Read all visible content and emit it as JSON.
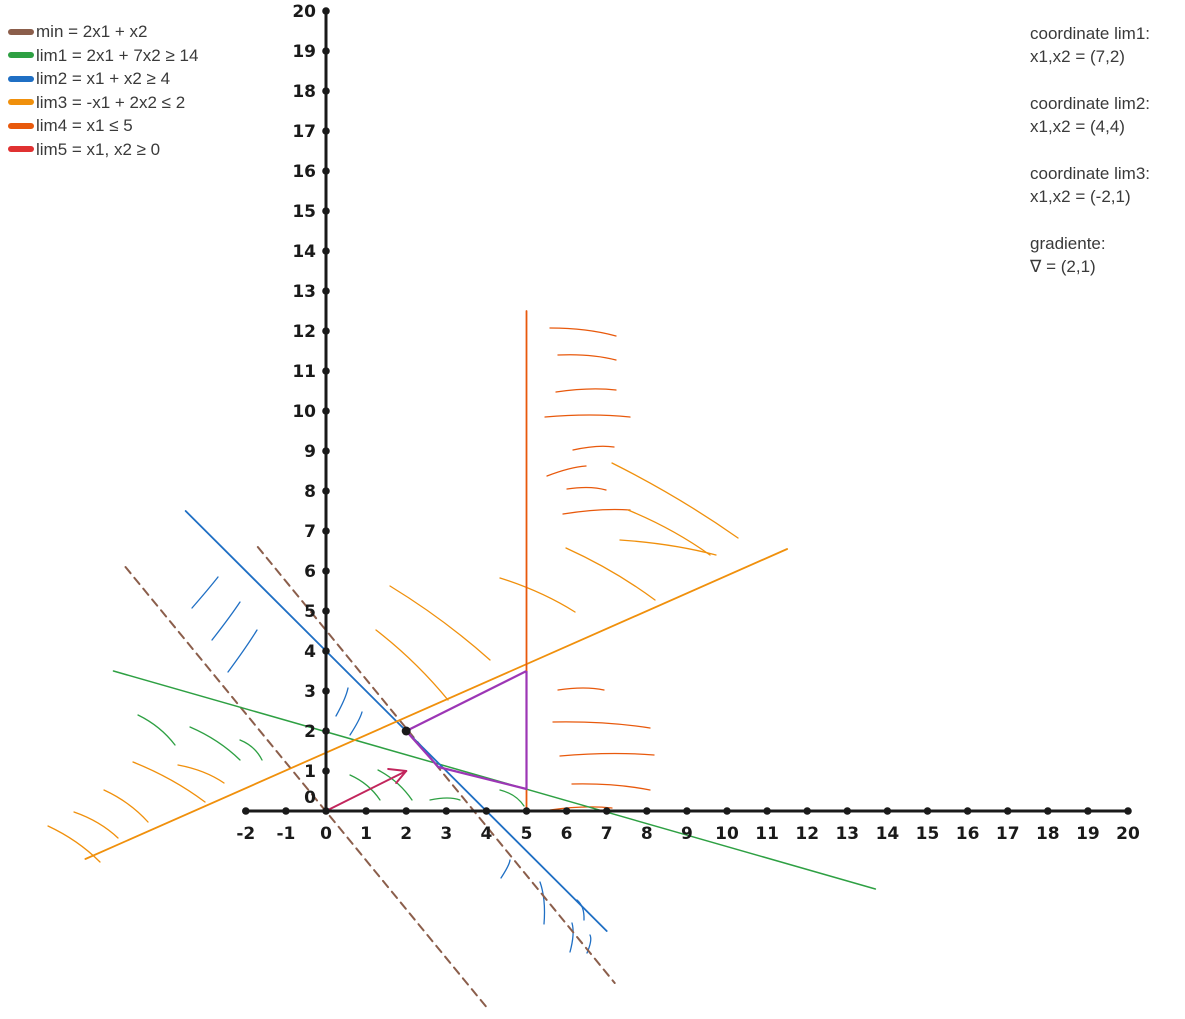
{
  "legend": [
    {
      "label": "min = 2x1 + x2",
      "color": "#8b5e4b"
    },
    {
      "label": "lim1 = 2x1 + 7x2 ≥ 14",
      "color": "#2ea043"
    },
    {
      "label": "lim2 = x1 + x2 ≥ 4",
      "color": "#1f6fc4"
    },
    {
      "label": "lim3 = -x1 + 2x2 ≤ 2",
      "color": "#f0900c"
    },
    {
      "label": "lim4 = x1 ≤ 5",
      "color": "#e8590c"
    },
    {
      "label": "lim5 = x1, x2 ≥ 0",
      "color": "#e03131"
    }
  ],
  "notes": [
    {
      "title": "coordinate lim1:",
      "value": "x1,x2 = (7,2)"
    },
    {
      "title": "coordinate lim2:",
      "value": "x1,x2 = (4,4)"
    },
    {
      "title": "coordinate lim3:",
      "value": "x1,x2 = (-2,1)"
    },
    {
      "title": "gradiente:",
      "value": "∇ = (2,1)"
    }
  ],
  "axes": {
    "x_ticks": [
      "-2",
      "-1",
      "0",
      "1",
      "2",
      "3",
      "4",
      "5",
      "6",
      "7",
      "8",
      "9",
      "10",
      "11",
      "12",
      "13",
      "14",
      "15",
      "16",
      "17",
      "18",
      "19",
      "20"
    ],
    "y_ticks": [
      "0",
      "1",
      "2",
      "3",
      "4",
      "5",
      "6",
      "7",
      "8",
      "9",
      "10",
      "11",
      "12",
      "13",
      "14",
      "15",
      "16",
      "17",
      "18",
      "19",
      "20"
    ]
  },
  "colors": {
    "axis": "#1a1a1a",
    "objective": "#8b5e4b",
    "lim1": "#2ea043",
    "lim2": "#1f6fc4",
    "lim3": "#f0900c",
    "lim4": "#e8590c",
    "region": "#9c36b5",
    "gradient": "#c2255c"
  }
}
